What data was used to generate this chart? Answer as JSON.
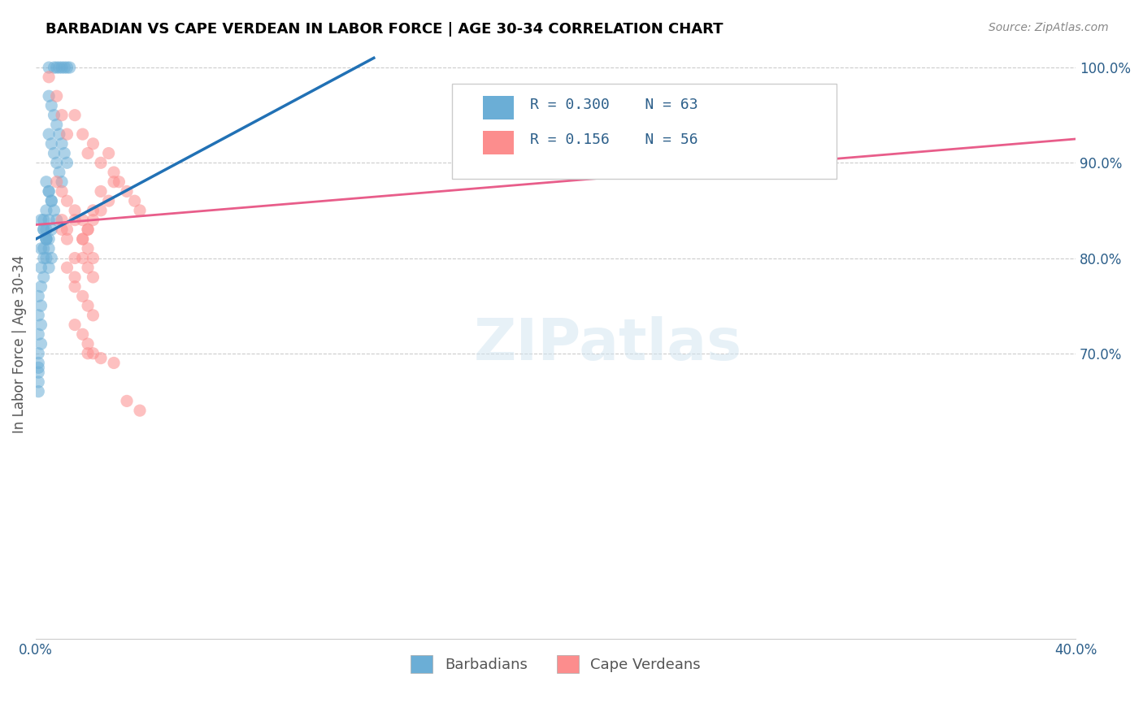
{
  "title": "BARBADIAN VS CAPE VERDEAN IN LABOR FORCE | AGE 30-34 CORRELATION CHART",
  "source": "Source: ZipAtlas.com",
  "xlabel": "",
  "ylabel": "In Labor Force | Age 30-34",
  "xlim": [
    0.0,
    0.4
  ],
  "ylim": [
    0.4,
    1.02
  ],
  "xticks": [
    0.0,
    0.05,
    0.1,
    0.15,
    0.2,
    0.25,
    0.3,
    0.35,
    0.4
  ],
  "xticklabels": [
    "0.0%",
    "",
    "",
    "",
    "",
    "",
    "",
    "",
    "40.0%"
  ],
  "yticks_left": [],
  "yticks_right": [
    1.0,
    0.9,
    0.8,
    0.7
  ],
  "yticklabels_right": [
    "100.0%",
    "90.0%",
    "80.0%",
    "70.0%"
  ],
  "blue_R": 0.3,
  "blue_N": 63,
  "pink_R": 0.156,
  "pink_N": 56,
  "blue_color": "#6baed6",
  "pink_color": "#fc8d8d",
  "blue_line_color": "#2171b5",
  "pink_line_color": "#e85d8a",
  "watermark": "ZIPatlas",
  "legend_label_blue": "Barbadians",
  "legend_label_pink": "Cape Verdeans",
  "blue_scatter_x": [
    0.005,
    0.007,
    0.008,
    0.009,
    0.01,
    0.011,
    0.012,
    0.013,
    0.005,
    0.006,
    0.007,
    0.008,
    0.009,
    0.01,
    0.011,
    0.012,
    0.005,
    0.006,
    0.007,
    0.008,
    0.009,
    0.01,
    0.005,
    0.006,
    0.004,
    0.005,
    0.006,
    0.007,
    0.008,
    0.004,
    0.005,
    0.006,
    0.004,
    0.005,
    0.006,
    0.003,
    0.004,
    0.005,
    0.003,
    0.004,
    0.003,
    0.004,
    0.005,
    0.002,
    0.003,
    0.004,
    0.002,
    0.003,
    0.002,
    0.003,
    0.002,
    0.001,
    0.002,
    0.001,
    0.002,
    0.001,
    0.002,
    0.001,
    0.001,
    0.001,
    0.001,
    0.001,
    0.001
  ],
  "blue_scatter_y": [
    1.0,
    1.0,
    1.0,
    1.0,
    1.0,
    1.0,
    1.0,
    1.0,
    0.97,
    0.96,
    0.95,
    0.94,
    0.93,
    0.92,
    0.91,
    0.9,
    0.93,
    0.92,
    0.91,
    0.9,
    0.89,
    0.88,
    0.87,
    0.86,
    0.88,
    0.87,
    0.86,
    0.85,
    0.84,
    0.85,
    0.84,
    0.83,
    0.82,
    0.81,
    0.8,
    0.84,
    0.83,
    0.82,
    0.83,
    0.82,
    0.81,
    0.8,
    0.79,
    0.84,
    0.83,
    0.82,
    0.81,
    0.8,
    0.79,
    0.78,
    0.77,
    0.76,
    0.75,
    0.74,
    0.73,
    0.72,
    0.71,
    0.7,
    0.69,
    0.685,
    0.68,
    0.67,
    0.66
  ],
  "pink_scatter_x": [
    0.005,
    0.008,
    0.01,
    0.012,
    0.015,
    0.018,
    0.02,
    0.022,
    0.025,
    0.028,
    0.03,
    0.032,
    0.035,
    0.038,
    0.04,
    0.008,
    0.01,
    0.012,
    0.015,
    0.018,
    0.02,
    0.022,
    0.025,
    0.028,
    0.03,
    0.01,
    0.012,
    0.015,
    0.018,
    0.02,
    0.022,
    0.025,
    0.01,
    0.012,
    0.015,
    0.018,
    0.02,
    0.022,
    0.012,
    0.015,
    0.018,
    0.02,
    0.022,
    0.015,
    0.018,
    0.02,
    0.022,
    0.015,
    0.018,
    0.02,
    0.022,
    0.02,
    0.025,
    0.03,
    0.035,
    0.04
  ],
  "pink_scatter_y": [
    0.99,
    0.97,
    0.95,
    0.93,
    0.95,
    0.93,
    0.91,
    0.92,
    0.9,
    0.91,
    0.89,
    0.88,
    0.87,
    0.86,
    0.85,
    0.88,
    0.87,
    0.86,
    0.85,
    0.84,
    0.83,
    0.85,
    0.87,
    0.86,
    0.88,
    0.84,
    0.83,
    0.84,
    0.82,
    0.83,
    0.84,
    0.85,
    0.83,
    0.82,
    0.8,
    0.82,
    0.81,
    0.8,
    0.79,
    0.78,
    0.8,
    0.79,
    0.78,
    0.77,
    0.76,
    0.75,
    0.74,
    0.73,
    0.72,
    0.71,
    0.7,
    0.7,
    0.695,
    0.69,
    0.65,
    0.64
  ],
  "blue_line_x": [
    0.0,
    0.13
  ],
  "blue_line_y": [
    0.82,
    1.01
  ],
  "pink_line_x": [
    0.0,
    0.4
  ],
  "pink_line_y": [
    0.835,
    0.925
  ]
}
